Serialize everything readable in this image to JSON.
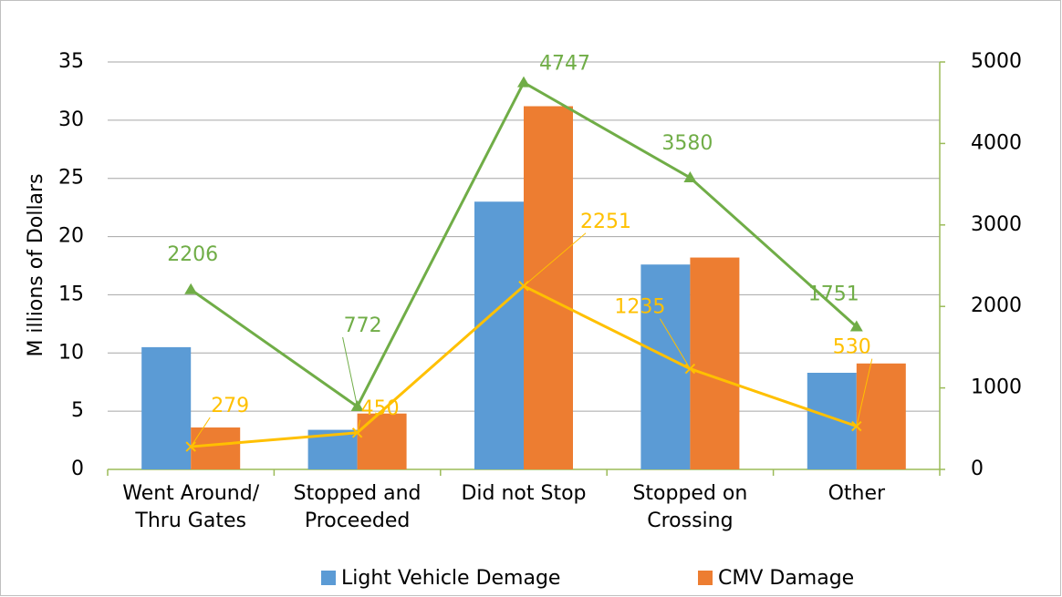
{
  "chart_data": {
    "type": "bar",
    "categories": [
      "Went Around/\nThru  Gates",
      "Stopped and\nProceeded",
      "Did not Stop",
      "Stopped on\nCrossing",
      "Other"
    ],
    "ylabel": "M illions of Dollars",
    "ylim": [
      0,
      35
    ],
    "yticks": [
      0,
      5,
      10,
      15,
      20,
      25,
      30,
      35
    ],
    "y2lim": [
      0,
      5000
    ],
    "y2ticks": [
      0,
      1000,
      2000,
      3000,
      4000,
      5000
    ],
    "grid": true,
    "legend": "bottom",
    "series": [
      {
        "name": "Light Vehicle Demage",
        "color": "#5b9bd5",
        "type": "bar",
        "values": [
          10.5,
          3.4,
          23,
          17.6,
          8.3
        ]
      },
      {
        "name": "CMV Damage",
        "color": "#ed7d31",
        "type": "bar",
        "values": [
          3.6,
          4.8,
          31.2,
          18.2,
          9.1
        ]
      },
      {
        "color": "#70ad47",
        "type": "line",
        "axis": "y2",
        "marker": "triangle",
        "values": [
          2206,
          772,
          4747,
          3580,
          1751
        ]
      },
      {
        "color": "#ffc000",
        "type": "line",
        "axis": "y2",
        "marker": "x",
        "values": [
          279,
          450,
          2251,
          1235,
          530
        ]
      }
    ]
  }
}
